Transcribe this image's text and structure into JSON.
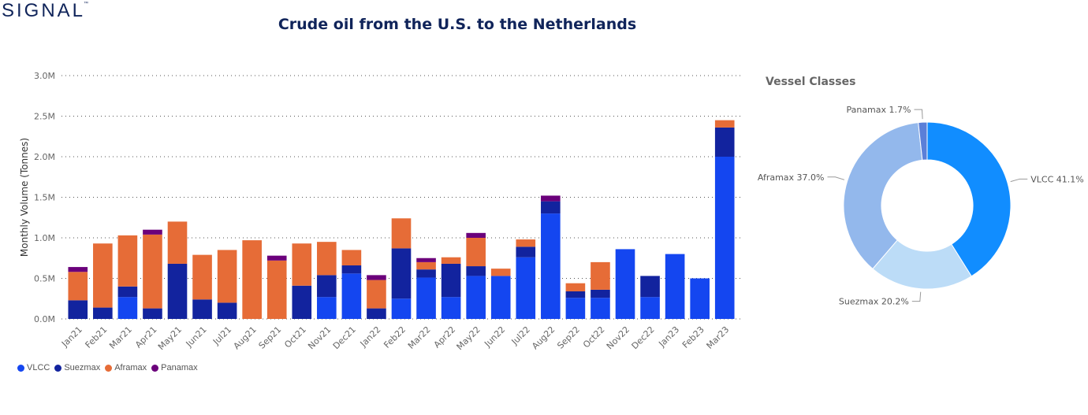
{
  "brand": {
    "logo_text": "SIGNAL",
    "trademark": "™"
  },
  "chart_data": [
    {
      "type": "bar",
      "stacked": true,
      "title": "Crude oil from the U.S. to the Netherlands",
      "xlabel": "",
      "ylabel": "Monthly Volume (Tonnes)",
      "ylim": [
        0,
        3000000
      ],
      "yticks": [
        "0.0M",
        "0.5M",
        "1.0M",
        "1.5M",
        "2.0M",
        "2.5M",
        "3.0M"
      ],
      "grid": true,
      "legend_position": "bottom-left",
      "categories": [
        "Jan21",
        "Feb21",
        "Mar21",
        "Apr21",
        "May21",
        "Jun21",
        "Jul21",
        "Aug21",
        "Sep21",
        "Oct21",
        "Nov21",
        "Dec21",
        "Jan22",
        "Feb22",
        "Mar22",
        "Apr22",
        "May22",
        "Jun22",
        "Jul22",
        "Aug22",
        "Sep22",
        "Oct22",
        "Nov22",
        "Dec22",
        "Jan23",
        "Feb23",
        "Mar23"
      ],
      "series": [
        {
          "name": "VLCC",
          "color": "#1446f0",
          "values": [
            0,
            0,
            270000,
            0,
            0,
            0,
            0,
            0,
            0,
            0,
            270000,
            560000,
            0,
            250000,
            510000,
            270000,
            530000,
            530000,
            760000,
            1300000,
            260000,
            260000,
            860000,
            270000,
            800000,
            500000,
            2000000
          ]
        },
        {
          "name": "Suezmax",
          "color": "#12239e",
          "values": [
            230000,
            140000,
            130000,
            130000,
            680000,
            240000,
            200000,
            0,
            0,
            410000,
            270000,
            100000,
            130000,
            620000,
            100000,
            410000,
            120000,
            0,
            130000,
            150000,
            80000,
            100000,
            0,
            260000,
            0,
            0,
            360000
          ]
        },
        {
          "name": "Aframax",
          "color": "#e66c37",
          "values": [
            350000,
            790000,
            630000,
            910000,
            520000,
            550000,
            650000,
            970000,
            720000,
            520000,
            410000,
            190000,
            350000,
            370000,
            90000,
            80000,
            350000,
            90000,
            90000,
            0,
            100000,
            340000,
            0,
            0,
            0,
            0,
            90000
          ]
        },
        {
          "name": "Panamax",
          "color": "#6b007b",
          "values": [
            60000,
            0,
            0,
            60000,
            0,
            0,
            0,
            0,
            60000,
            0,
            0,
            0,
            60000,
            0,
            50000,
            0,
            60000,
            0,
            0,
            70000,
            0,
            0,
            0,
            0,
            0,
            0,
            0
          ]
        }
      ]
    },
    {
      "type": "pie",
      "donut": true,
      "title": "Vessel Classes",
      "slices": [
        {
          "name": "VLCC",
          "value": 41.1,
          "label": "VLCC 41.1%",
          "color": "#118dff"
        },
        {
          "name": "Suezmax",
          "value": 20.2,
          "label": "Suezmax 20.2%",
          "color": "#bcdcf7"
        },
        {
          "name": "Aframax",
          "value": 37.0,
          "label": "Aframax 37.0%",
          "color": "#93b8ec"
        },
        {
          "name": "Panamax",
          "value": 1.7,
          "label": "Panamax 1.7%",
          "color": "#5b7fd8"
        }
      ]
    }
  ]
}
